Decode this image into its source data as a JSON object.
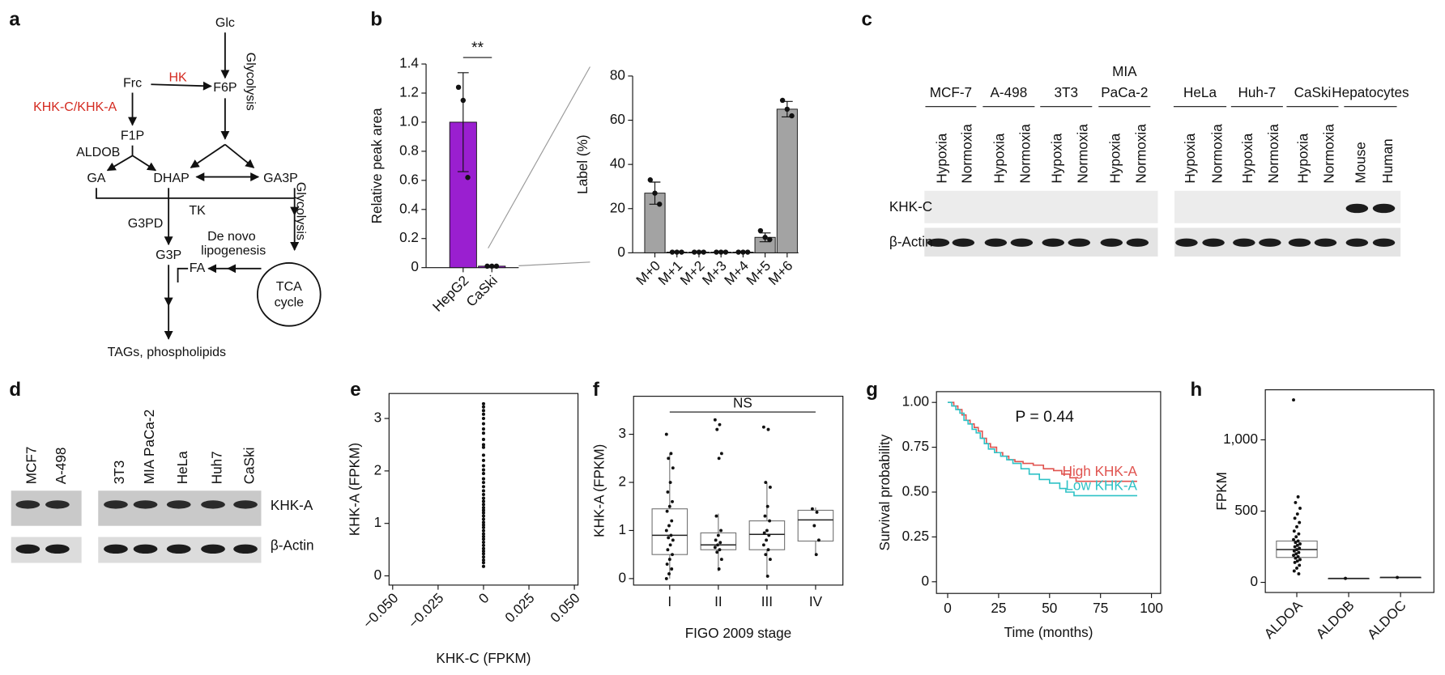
{
  "panel_labels": [
    "a",
    "b",
    "c",
    "d",
    "e",
    "f",
    "g",
    "h"
  ],
  "pathway": {
    "nodes": [
      {
        "label": "Glc"
      },
      {
        "label": "F6P"
      },
      {
        "label": "Glycolysis"
      },
      {
        "label": "HK",
        "color": "#d42a20"
      },
      {
        "label": "Frc"
      },
      {
        "label": "KHK-C/KHK-A",
        "color": "#d42a20"
      },
      {
        "label": "F1P"
      },
      {
        "label": "ALDOB"
      },
      {
        "label": "GA"
      },
      {
        "label": "DHAP"
      },
      {
        "label": "GA3P"
      },
      {
        "label": "Glycolysis"
      },
      {
        "label": "TK"
      },
      {
        "label": "G3PD"
      },
      {
        "label": "De novo"
      },
      {
        "label": "lipogenesis"
      },
      {
        "label": "G3P"
      },
      {
        "label": "FA"
      },
      {
        "label": "TCA"
      },
      {
        "label": "cycle"
      },
      {
        "label": "TAGs, phospholipids"
      }
    ]
  },
  "blot_c": {
    "groups": [
      {
        "label": [
          "MCF-7"
        ],
        "lanes": [
          "Hypoxia",
          "Normoxia"
        ]
      },
      {
        "label": [
          "A-498"
        ],
        "lanes": [
          "Hypoxia",
          "Normoxia"
        ]
      },
      {
        "label": [
          "3T3"
        ],
        "lanes": [
          "Hypoxia",
          "Normoxia"
        ]
      },
      {
        "label": [
          "MIA",
          "PaCa-2"
        ],
        "lanes": [
          "Hypoxia",
          "Normoxia"
        ]
      },
      {
        "label": [
          "HeLa"
        ],
        "lanes": [
          "Hypoxia",
          "Normoxia"
        ]
      },
      {
        "label": [
          "Huh-7"
        ],
        "lanes": [
          "Hypoxia",
          "Normoxia"
        ]
      },
      {
        "label": [
          "CaSki"
        ],
        "lanes": [
          "Hypoxia",
          "Normoxia"
        ]
      },
      {
        "label": [
          "Hepatocytes"
        ],
        "lanes": [
          "Mouse",
          "Human"
        ]
      }
    ],
    "rows": [
      "KHK-C",
      "β-Actin"
    ]
  },
  "blot_d": {
    "lanes": [
      "MCF7",
      "A-498",
      "3T3",
      "MIA PaCa-2",
      "HeLa",
      "Huh7",
      "CaSki"
    ],
    "rows": [
      "KHK-A",
      "β-Actin"
    ]
  },
  "chart_data": [
    {
      "type": "bar",
      "ylabel": "Relative peak area",
      "categories": [
        "HepG2",
        "CaSki"
      ],
      "values": [
        1.0,
        0.01
      ],
      "errors": [
        0.34,
        0.004
      ],
      "points": [
        [
          1.24,
          1.15,
          0.62
        ],
        [
          0.01,
          0.01,
          0.01
        ]
      ],
      "color": "#9a1fd0",
      "ylim": [
        0,
        1.4
      ],
      "yticks": [
        0,
        0.2,
        0.4,
        0.6,
        0.8,
        {
          "value": 1,
          "label": "1.0"
        },
        1.2,
        1.4
      ],
      "annotation": "**"
    },
    {
      "type": "bar",
      "ylabel": "Label (%)",
      "categories": [
        "M+0",
        "M+1",
        "M+2",
        "M+3",
        "M+4",
        "M+5",
        "M+6"
      ],
      "values": [
        27,
        0.3,
        0.3,
        0.3,
        0.3,
        7,
        65
      ],
      "errors": [
        5,
        0,
        0,
        0,
        0,
        2,
        3.5
      ],
      "points": [
        [
          33,
          27,
          22
        ],
        [
          0.3,
          0.3,
          0.3
        ],
        [
          0.3,
          0.3,
          0.3
        ],
        [
          0.3,
          0.3,
          0.3
        ],
        [
          0.3,
          0.3,
          0.3
        ],
        [
          10,
          7,
          6
        ],
        [
          69,
          65,
          62
        ]
      ],
      "color": "#a3a3a3",
      "ylim": [
        0,
        80
      ],
      "yticks": [
        0,
        20,
        40,
        60,
        80
      ]
    },
    {
      "type": "scatter",
      "xlabel": "KHK-C (FPKM)",
      "ylabel": "KHK-A (FPKM)",
      "x": [
        0,
        0,
        0,
        0,
        0,
        0,
        0,
        0,
        0,
        0,
        0,
        0,
        0,
        0,
        0,
        0,
        0,
        0,
        0,
        0,
        0,
        0,
        0,
        0,
        0,
        0,
        0,
        0,
        0,
        0,
        0,
        0,
        0,
        0,
        0,
        0,
        0,
        0,
        0,
        0,
        0,
        0,
        0,
        0,
        0
      ],
      "y": [
        3.28,
        3.22,
        3.15,
        3.08,
        3.0,
        2.9,
        2.8,
        2.72,
        2.6,
        2.5,
        2.45,
        2.3,
        2.2,
        2.1,
        2.02,
        1.95,
        1.85,
        1.78,
        1.7,
        1.62,
        1.55,
        1.48,
        1.42,
        1.36,
        1.3,
        1.25,
        1.2,
        1.14,
        1.08,
        1.02,
        0.97,
        0.92,
        0.86,
        0.8,
        0.75,
        0.7,
        0.64,
        0.58,
        0.52,
        0.47,
        0.42,
        0.36,
        0.3,
        0.25,
        0.18
      ],
      "color": "#111111",
      "xlim": [
        -0.052,
        0.052
      ],
      "ylim": [
        -0.176,
        3.476
      ],
      "xticks": [
        {
          "value": -0.05,
          "label": "−0.050"
        },
        {
          "value": -0.025,
          "label": "−0.025"
        },
        0,
        0.025,
        {
          "value": 0.05,
          "label": "0.050"
        }
      ],
      "yticks": [
        0,
        1,
        2,
        3
      ]
    },
    {
      "type": "box",
      "xlabel": "FIGO 2009 stage",
      "ylabel": "KHK-A (FPKM)",
      "categories": [
        "I",
        "II",
        "III",
        "IV"
      ],
      "boxes": [
        {
          "low": 0.0,
          "q1": 0.5,
          "median": 0.9,
          "q3": 1.45,
          "high": 2.6
        },
        {
          "low": 0.15,
          "q1": 0.6,
          "median": 0.7,
          "q3": 0.95,
          "high": 1.35
        },
        {
          "low": 0.05,
          "q1": 0.6,
          "median": 0.92,
          "q3": 1.2,
          "high": 2.0
        },
        {
          "low": 0.48,
          "q1": 0.78,
          "median": 1.22,
          "q3": 1.42,
          "high": 1.48
        }
      ],
      "points": [
        [
          3.0,
          2.6,
          2.5,
          2.3,
          2.0,
          1.8,
          1.6,
          1.5,
          1.4,
          1.2,
          1.1,
          1.0,
          0.9,
          0.85,
          0.8,
          0.7,
          0.6,
          0.5,
          0.4,
          0.3,
          0.2,
          0.1,
          0.0
        ],
        [
          3.3,
          3.2,
          3.1,
          2.6,
          2.5,
          1.3,
          1.0,
          0.9,
          0.8,
          0.75,
          0.7,
          0.65,
          0.6,
          0.55,
          0.4,
          0.2
        ],
        [
          3.15,
          3.1,
          2.0,
          1.9,
          1.5,
          1.3,
          1.2,
          1.0,
          0.95,
          0.9,
          0.8,
          0.7,
          0.6,
          0.5,
          0.4,
          0.05
        ],
        [
          1.45,
          1.38,
          1.1,
          0.8,
          0.5
        ]
      ],
      "ylim": [
        -0.135,
        3.79
      ],
      "yticks": [
        0,
        1,
        2,
        3
      ],
      "annotation": "NS"
    },
    {
      "type": "line",
      "xlabel": "Time (months)",
      "ylabel": "Survival probability",
      "annotation": "P = 0.44",
      "series": [
        {
          "name": "High KHK-A",
          "color": "#e0534f",
          "x": [
            0,
            3,
            5,
            7,
            9,
            11,
            13,
            15,
            17,
            19,
            21,
            24,
            27,
            30,
            33,
            37,
            42,
            47,
            52,
            56,
            60,
            63,
            93
          ],
          "values": [
            1,
            0.98,
            0.96,
            0.93,
            0.9,
            0.88,
            0.86,
            0.84,
            0.8,
            0.77,
            0.75,
            0.72,
            0.7,
            0.68,
            0.67,
            0.66,
            0.65,
            0.63,
            0.62,
            0.6,
            0.58,
            0.56,
            0.56
          ]
        },
        {
          "name": "Low KHK-A",
          "color": "#2ec2c6",
          "x": [
            0,
            2,
            4,
            6,
            8,
            10,
            12,
            14,
            16,
            18,
            20,
            23,
            26,
            29,
            32,
            36,
            40,
            45,
            50,
            55,
            58,
            62,
            93
          ],
          "values": [
            1,
            0.98,
            0.96,
            0.94,
            0.9,
            0.88,
            0.85,
            0.83,
            0.8,
            0.77,
            0.74,
            0.72,
            0.7,
            0.68,
            0.66,
            0.63,
            0.6,
            0.57,
            0.55,
            0.52,
            0.5,
            0.48,
            0.48
          ]
        }
      ],
      "xlim": [
        -5.5,
        104.5
      ],
      "ylim": [
        -0.065,
        1.06
      ],
      "xticks": [
        0,
        25,
        50,
        75,
        100
      ],
      "yticks": [
        0,
        0.25,
        {
          "value": 0.5,
          "label": "0.50"
        },
        0.75,
        {
          "value": 1,
          "label": "1.00"
        }
      ]
    },
    {
      "type": "box",
      "ylabel": "FPKM",
      "categories": [
        "ALDOA",
        "ALDOB",
        "ALDOC"
      ],
      "boxes": [
        {
          "q1": 175,
          "median": 230,
          "q3": 290
        },
        {
          "q1": 28,
          "median": 28,
          "q3": 28
        },
        {
          "q1": 35,
          "median": 35,
          "q3": 35
        }
      ],
      "points": [
        [
          1280,
          600,
          560,
          520,
          480,
          450,
          420,
          390,
          360,
          340,
          320,
          300,
          290,
          280,
          270,
          260,
          250,
          240,
          230,
          220,
          210,
          200,
          190,
          180,
          170,
          160,
          150,
          140,
          120,
          100,
          80,
          60
        ],
        [
          28
        ],
        [
          35
        ]
      ],
      "ylim": [
        -71,
        1351
      ],
      "yticks": [
        0,
        500,
        {
          "value": 1000,
          "label": "1,000"
        }
      ]
    }
  ]
}
